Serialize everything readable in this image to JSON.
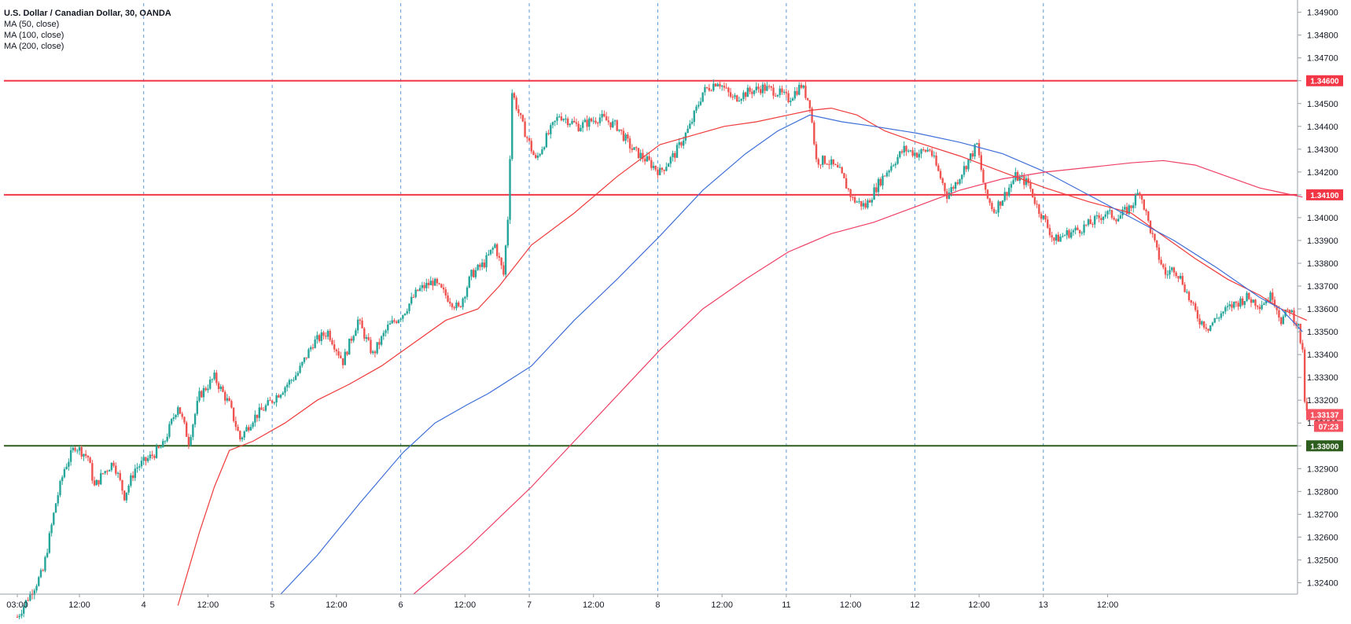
{
  "chart_data": {
    "type": "candlestick",
    "title": "U.S. Dollar / Canadian Dollar, 30, OANDA",
    "symbol": "USDCAD",
    "timeframe": "30",
    "source": "OANDA",
    "indicators": [
      {
        "label": "MA (50, close)",
        "color": "#ef3a3a"
      },
      {
        "label": "MA (100, close)",
        "color": "#3f6fd8"
      },
      {
        "label": "MA (200, close)",
        "color": "#ee3f63"
      }
    ],
    "x_ticks": [
      "03:00",
      "12:00",
      "4",
      "12:00",
      "5",
      "12:00",
      "6",
      "12:00",
      "7",
      "12:00",
      "8",
      "12:00",
      "11",
      "12:00",
      "12",
      "12:00",
      "13",
      "12:00"
    ],
    "y_ticks": [
      "1.34900",
      "1.34800",
      "1.34700",
      "1.34600",
      "1.34500",
      "1.34400",
      "1.34300",
      "1.34200",
      "1.34100",
      "1.34000",
      "1.33900",
      "1.33800",
      "1.33700",
      "1.33600",
      "1.33500",
      "1.33400",
      "1.33300",
      "1.33200",
      "1.33100",
      "1.33000",
      "1.32900",
      "1.32800",
      "1.32700",
      "1.32600",
      "1.32500",
      "1.32400"
    ],
    "ylim": [
      1.3235,
      1.3494
    ],
    "day_separators": [
      "4",
      "5",
      "6",
      "7",
      "8",
      "11",
      "12",
      "13"
    ],
    "horizontal_levels": [
      {
        "value": 1.346,
        "label": "1.34600",
        "color": "#f23645"
      },
      {
        "value": 1.341,
        "label": "1.34100",
        "color": "#f23645"
      },
      {
        "value": 1.33,
        "label": "1.33000",
        "color": "#2e5e1e"
      }
    ],
    "current_price": {
      "label": "1.33137",
      "countdown": "07:23",
      "color": "#f4535f"
    },
    "close_path": [
      [
        0,
        1.3225
      ],
      [
        12,
        1.3245
      ],
      [
        18,
        1.3275
      ],
      [
        22,
        1.329
      ],
      [
        27,
        1.33
      ],
      [
        33,
        1.3295
      ],
      [
        36,
        1.3282
      ],
      [
        40,
        1.3288
      ],
      [
        45,
        1.3293
      ],
      [
        50,
        1.3278
      ],
      [
        55,
        1.329
      ],
      [
        62,
        1.3295
      ],
      [
        68,
        1.33
      ],
      [
        75,
        1.3318
      ],
      [
        80,
        1.3302
      ],
      [
        85,
        1.3322
      ],
      [
        92,
        1.333
      ],
      [
        99,
        1.3318
      ],
      [
        104,
        1.3303
      ],
      [
        110,
        1.3312
      ],
      [
        117,
        1.3318
      ],
      [
        124,
        1.3325
      ],
      [
        131,
        1.3332
      ],
      [
        138,
        1.3345
      ],
      [
        145,
        1.335
      ],
      [
        152,
        1.3337
      ],
      [
        159,
        1.3355
      ],
      [
        166,
        1.334
      ],
      [
        173,
        1.3352
      ],
      [
        180,
        1.3358
      ],
      [
        187,
        1.3368
      ],
      [
        194,
        1.3372
      ],
      [
        201,
        1.3365
      ],
      [
        206,
        1.336
      ],
      [
        212,
        1.3375
      ],
      [
        218,
        1.338
      ],
      [
        223,
        1.3388
      ],
      [
        227,
        1.3375
      ],
      [
        229,
        1.34
      ],
      [
        231,
        1.3455
      ],
      [
        236,
        1.344
      ],
      [
        242,
        1.3425
      ],
      [
        247,
        1.3435
      ],
      [
        253,
        1.3445
      ],
      [
        262,
        1.344
      ],
      [
        272,
        1.3444
      ],
      [
        280,
        1.344
      ],
      [
        287,
        1.343
      ],
      [
        294,
        1.3425
      ],
      [
        300,
        1.342
      ],
      [
        307,
        1.3428
      ],
      [
        314,
        1.344
      ],
      [
        320,
        1.3455
      ],
      [
        327,
        1.346
      ],
      [
        334,
        1.3452
      ],
      [
        341,
        1.3455
      ],
      [
        348,
        1.3457
      ],
      [
        355,
        1.3455
      ],
      [
        360,
        1.3452
      ],
      [
        366,
        1.3458
      ],
      [
        370,
        1.345
      ],
      [
        373,
        1.3425
      ],
      [
        378,
        1.3425
      ],
      [
        384,
        1.342
      ],
      [
        390,
        1.3408
      ],
      [
        396,
        1.3405
      ],
      [
        402,
        1.3415
      ],
      [
        408,
        1.3423
      ],
      [
        414,
        1.343
      ],
      [
        420,
        1.3428
      ],
      [
        426,
        1.343
      ],
      [
        430,
        1.342
      ],
      [
        434,
        1.341
      ],
      [
        438,
        1.3415
      ],
      [
        444,
        1.3425
      ],
      [
        448,
        1.3432
      ],
      [
        452,
        1.341
      ],
      [
        456,
        1.3403
      ],
      [
        461,
        1.341
      ],
      [
        466,
        1.3418
      ],
      [
        472,
        1.3415
      ],
      [
        476,
        1.3405
      ],
      [
        480,
        1.3398
      ],
      [
        484,
        1.339
      ],
      [
        490,
        1.3393
      ],
      [
        496,
        1.3395
      ],
      [
        502,
        1.3398
      ],
      [
        508,
        1.3402
      ],
      [
        514,
        1.34
      ],
      [
        520,
        1.3405
      ],
      [
        524,
        1.3412
      ],
      [
        528,
        1.3398
      ],
      [
        532,
        1.3385
      ],
      [
        536,
        1.3375
      ],
      [
        540,
        1.3378
      ],
      [
        544,
        1.3372
      ],
      [
        548,
        1.3362
      ],
      [
        552,
        1.3355
      ],
      [
        556,
        1.3352
      ],
      [
        562,
        1.3358
      ],
      [
        568,
        1.3362
      ],
      [
        574,
        1.3365
      ],
      [
        580,
        1.3362
      ],
      [
        586,
        1.3366
      ],
      [
        590,
        1.3355
      ],
      [
        594,
        1.336
      ],
      [
        598,
        1.3352
      ],
      [
        600,
        1.334
      ],
      [
        601,
        1.332
      ],
      [
        602,
        1.3314
      ]
    ],
    "ma_series": [
      {
        "name": "MA (50, close)",
        "color": "#ef3a3a",
        "values": [
          [
            75,
            1.323
          ],
          [
            85,
            1.3262
          ],
          [
            92,
            1.3282
          ],
          [
            99,
            1.3298
          ],
          [
            110,
            1.3302
          ],
          [
            125,
            1.331
          ],
          [
            140,
            1.332
          ],
          [
            155,
            1.3327
          ],
          [
            170,
            1.3335
          ],
          [
            185,
            1.3345
          ],
          [
            200,
            1.3355
          ],
          [
            215,
            1.336
          ],
          [
            225,
            1.337
          ],
          [
            240,
            1.3388
          ],
          [
            260,
            1.3402
          ],
          [
            280,
            1.3418
          ],
          [
            300,
            1.3432
          ],
          [
            315,
            1.3436
          ],
          [
            330,
            1.344
          ],
          [
            345,
            1.3442
          ],
          [
            360,
            1.3445
          ],
          [
            370,
            1.3447
          ],
          [
            380,
            1.3448
          ],
          [
            392,
            1.3445
          ],
          [
            405,
            1.3438
          ],
          [
            420,
            1.3433
          ],
          [
            440,
            1.3427
          ],
          [
            460,
            1.342
          ],
          [
            480,
            1.3413
          ],
          [
            500,
            1.3407
          ],
          [
            520,
            1.3402
          ],
          [
            535,
            1.3392
          ],
          [
            550,
            1.3382
          ],
          [
            565,
            1.3373
          ],
          [
            580,
            1.3366
          ],
          [
            590,
            1.336
          ],
          [
            602,
            1.3355
          ]
        ]
      },
      {
        "name": "MA (100, close)",
        "color": "#3f6fd8",
        "values": [
          [
            123,
            1.3235
          ],
          [
            140,
            1.3252
          ],
          [
            160,
            1.3275
          ],
          [
            180,
            1.3297
          ],
          [
            195,
            1.331
          ],
          [
            210,
            1.3318
          ],
          [
            220,
            1.3323
          ],
          [
            240,
            1.3335
          ],
          [
            260,
            1.3355
          ],
          [
            280,
            1.3373
          ],
          [
            300,
            1.3392
          ],
          [
            320,
            1.3412
          ],
          [
            340,
            1.3428
          ],
          [
            355,
            1.3438
          ],
          [
            370,
            1.3445
          ],
          [
            385,
            1.3442
          ],
          [
            400,
            1.344
          ],
          [
            420,
            1.3437
          ],
          [
            440,
            1.3433
          ],
          [
            460,
            1.3428
          ],
          [
            480,
            1.342
          ],
          [
            500,
            1.341
          ],
          [
            520,
            1.34
          ],
          [
            540,
            1.339
          ],
          [
            560,
            1.3378
          ],
          [
            580,
            1.3365
          ],
          [
            590,
            1.336
          ],
          [
            600,
            1.335
          ]
        ]
      },
      {
        "name": "MA (200, close)",
        "color": "#ee3f63",
        "values": [
          [
            185,
            1.3235
          ],
          [
            210,
            1.3255
          ],
          [
            240,
            1.3282
          ],
          [
            270,
            1.3312
          ],
          [
            300,
            1.3342
          ],
          [
            320,
            1.336
          ],
          [
            340,
            1.3373
          ],
          [
            360,
            1.3385
          ],
          [
            380,
            1.3393
          ],
          [
            400,
            1.3398
          ],
          [
            420,
            1.3405
          ],
          [
            440,
            1.3412
          ],
          [
            460,
            1.3417
          ],
          [
            480,
            1.342
          ],
          [
            500,
            1.3422
          ],
          [
            520,
            1.3424
          ],
          [
            535,
            1.3425
          ],
          [
            550,
            1.3423
          ],
          [
            565,
            1.3418
          ],
          [
            580,
            1.3413
          ],
          [
            590,
            1.3411
          ],
          [
            600,
            1.3409
          ]
        ]
      }
    ],
    "grid": false,
    "bull_color": "#26a69a",
    "bear_color": "#ef5350"
  }
}
